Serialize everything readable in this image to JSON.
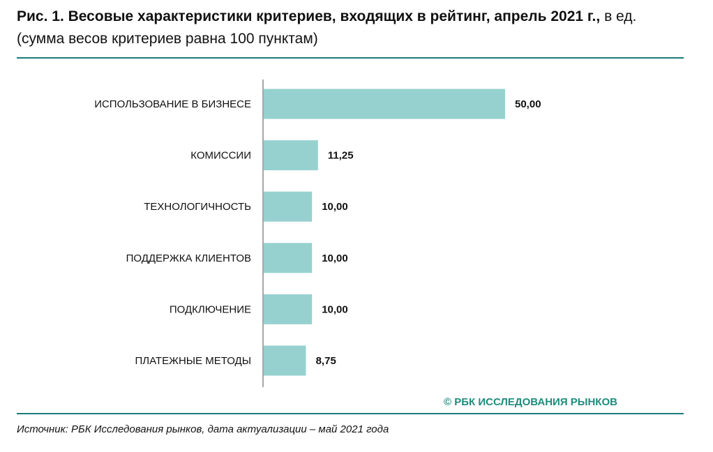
{
  "colors": {
    "bar": "#96D1CF",
    "rule": "#1D7A7A",
    "axis": "#8A8A8A",
    "copyright": "#1F8C7E",
    "text": "#111111"
  },
  "header": {
    "title_bold": "Рис. 1. Весовые характеристики критериев, входящих в рейтинг, апрель 2021 г.,",
    "title_rest": " в ед. (сумма весов критериев равна 100 пунктам)"
  },
  "chart_data": {
    "type": "bar",
    "orientation": "horizontal",
    "title": "Весовые характеристики критериев, входящих в рейтинг, апрель 2021 г., в ед. (сумма весов критериев равна 100 пунктам)",
    "categories": [
      "ИСПОЛЬЗОВАНИЕ В БИЗНЕСЕ",
      "КОМИССИИ",
      "ТЕХНОЛОГИЧНОСТЬ",
      "ПОДДЕРЖКА КЛИЕНТОВ",
      "ПОДКЛЮЧЕНИЕ",
      "ПЛАТЕЖНЫЕ МЕТОДЫ"
    ],
    "values": [
      50.0,
      11.25,
      10.0,
      10.0,
      10.0,
      8.75
    ],
    "value_labels": [
      "50,00",
      "11,25",
      "10,00",
      "10,00",
      "10,00",
      "8,75"
    ],
    "xlim": [
      0,
      50
    ],
    "grid": false,
    "legend": "none"
  },
  "footer": {
    "copyright": "© РБК ИССЛЕДОВАНИЯ РЫНКОВ",
    "source": "Источник: РБК Исследования рынков, дата актуализации – май 2021 года"
  }
}
